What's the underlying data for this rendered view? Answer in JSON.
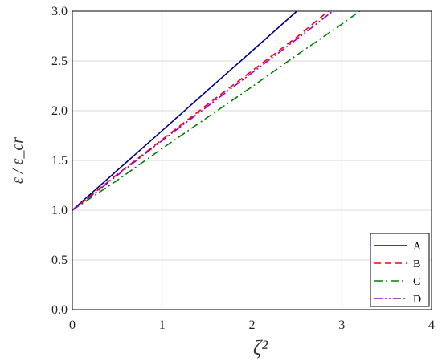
{
  "chart_data": {
    "type": "line",
    "title": "",
    "xlabel": "ζ²",
    "ylabel": "ε / ε_cr",
    "xlim": [
      0,
      4
    ],
    "ylim": [
      0,
      3
    ],
    "xticks": [
      0,
      1,
      2,
      3,
      4
    ],
    "yticks": [
      0.0,
      0.5,
      1.0,
      1.5,
      2.0,
      2.5,
      3.0
    ],
    "xtick_labels": [
      "0",
      "1",
      "2",
      "3",
      "4"
    ],
    "ytick_labels": [
      "0.0",
      "0.5",
      "1.0",
      "1.5",
      "2.0",
      "2.5",
      "3.0"
    ],
    "grid": true,
    "legend_position": "bottom-right",
    "series": [
      {
        "name": "A",
        "color": "#000080",
        "dash": "solid",
        "x": [
          0,
          0.25,
          0.5,
          1.0,
          1.5,
          2.0,
          2.5
        ],
        "y": [
          1.0,
          1.2,
          1.4,
          1.8,
          2.2,
          2.6,
          3.0
        ]
      },
      {
        "name": "B",
        "color": "#ff0000",
        "dash": "dashed",
        "x": [
          0,
          0.25,
          0.5,
          1.0,
          1.5,
          2.0,
          2.5,
          2.85
        ],
        "y": [
          1.0,
          1.18,
          1.36,
          1.71,
          2.06,
          2.4,
          2.74,
          3.0
        ]
      },
      {
        "name": "C",
        "color": "#008000",
        "dash": "dashdot",
        "x": [
          0,
          0.5,
          1.0,
          1.5,
          2.0,
          2.5,
          3.0,
          3.2
        ],
        "y": [
          1.0,
          1.3,
          1.62,
          1.93,
          2.24,
          2.56,
          2.87,
          3.0
        ]
      },
      {
        "name": "D",
        "color": "#9400d3",
        "dash": "dashdotdot",
        "x": [
          0,
          0.25,
          0.5,
          1.0,
          1.5,
          2.0,
          2.5,
          2.9
        ],
        "y": [
          1.0,
          1.17,
          1.35,
          1.7,
          2.04,
          2.38,
          2.72,
          3.0
        ]
      }
    ]
  }
}
